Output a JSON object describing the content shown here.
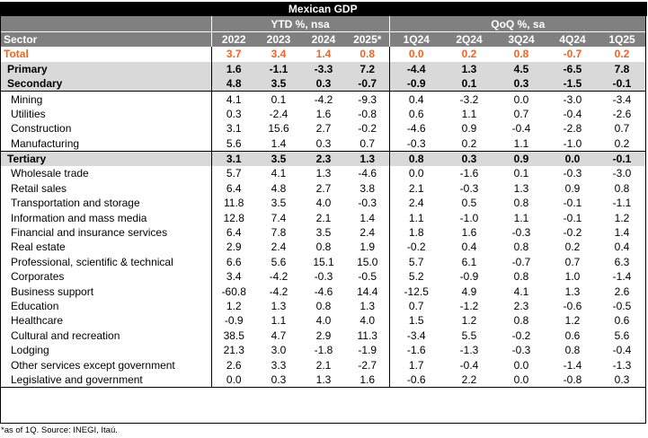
{
  "title": "Mexican GDP",
  "groups": {
    "ytd": "YTD %, nsa",
    "qoq": "QoQ %, sa"
  },
  "sector_header": "Sector",
  "columns": [
    "2022",
    "2023",
    "2024",
    "2025*",
    "1Q24",
    "2Q24",
    "3Q24",
    "4Q24",
    "1Q25"
  ],
  "colors": {
    "total": "#f26522",
    "header_bg": "#808080",
    "title_bg": "#000000",
    "aggregate_bg": "#d9d9d9"
  },
  "rows": [
    {
      "label": "Total",
      "kind": "total",
      "values": [
        "3.7",
        "3.4",
        "1.4",
        "0.8",
        "0.0",
        "0.2",
        "0.8",
        "-0.7",
        "0.2"
      ]
    },
    {
      "label": "Primary",
      "kind": "agg",
      "values": [
        "1.6",
        "-1.1",
        "-3.3",
        "7.2",
        "-4.4",
        "1.3",
        "4.5",
        "-6.5",
        "7.8"
      ]
    },
    {
      "label": "Secondary",
      "kind": "agg",
      "values": [
        "4.8",
        "3.5",
        "0.3",
        "-0.7",
        "-0.9",
        "0.1",
        "0.3",
        "-1.5",
        "-0.1"
      ]
    },
    {
      "label": "Mining",
      "kind": "sub",
      "values": [
        "4.1",
        "0.1",
        "-4.2",
        "-9.3",
        "0.4",
        "-3.2",
        "0.0",
        "-3.0",
        "-3.4"
      ]
    },
    {
      "label": "Utilities",
      "kind": "sub",
      "values": [
        "0.3",
        "-2.4",
        "1.6",
        "-0.8",
        "0.6",
        "1.1",
        "0.7",
        "-0.4",
        "-2.6"
      ]
    },
    {
      "label": "Construction",
      "kind": "sub",
      "values": [
        "3.1",
        "15.6",
        "2.7",
        "-0.2",
        "-4.6",
        "0.9",
        "-0.4",
        "-2.8",
        "0.7"
      ]
    },
    {
      "label": "Manufacturing",
      "kind": "sub",
      "values": [
        "5.6",
        "1.4",
        "0.3",
        "0.7",
        "-0.3",
        "0.2",
        "1.1",
        "-1.0",
        "0.2"
      ]
    },
    {
      "label": "Tertiary",
      "kind": "agg",
      "values": [
        "3.1",
        "3.5",
        "2.3",
        "1.3",
        "0.8",
        "0.3",
        "0.9",
        "0.0",
        "-0.1"
      ]
    },
    {
      "label": "Wholesale trade",
      "kind": "sub",
      "values": [
        "5.7",
        "4.1",
        "1.3",
        "-4.6",
        "0.0",
        "-1.6",
        "0.1",
        "-0.3",
        "-3.0"
      ]
    },
    {
      "label": "Retail sales",
      "kind": "sub",
      "values": [
        "6.4",
        "4.8",
        "2.7",
        "3.8",
        "2.1",
        "-0.3",
        "1.3",
        "0.9",
        "0.8"
      ]
    },
    {
      "label": "Transportation and storage",
      "kind": "sub",
      "values": [
        "11.8",
        "3.5",
        "4.0",
        "-0.3",
        "2.4",
        "0.5",
        "0.8",
        "-0.1",
        "-1.1"
      ]
    },
    {
      "label": "Information and mass media",
      "kind": "sub",
      "values": [
        "12.8",
        "7.4",
        "2.1",
        "1.4",
        "1.1",
        "-1.0",
        "1.1",
        "-0.1",
        "1.2"
      ]
    },
    {
      "label": "Financial and insurance services",
      "kind": "sub",
      "values": [
        "6.4",
        "7.8",
        "3.5",
        "2.4",
        "1.8",
        "1.6",
        "-0.3",
        "-0.2",
        "1.4"
      ]
    },
    {
      "label": "Real estate",
      "kind": "sub",
      "values": [
        "2.9",
        "2.4",
        "0.8",
        "1.9",
        "-0.2",
        "0.4",
        "0.8",
        "0.2",
        "0.4"
      ]
    },
    {
      "label": "Professional, scientific & technical",
      "kind": "sub",
      "values": [
        "6.6",
        "5.6",
        "15.1",
        "15.0",
        "5.7",
        "6.1",
        "-0.7",
        "0.7",
        "6.3"
      ]
    },
    {
      "label": "Corporates",
      "kind": "sub",
      "values": [
        "3.4",
        "-4.2",
        "-0.3",
        "-0.5",
        "5.2",
        "-0.9",
        "0.8",
        "1.0",
        "-1.4"
      ]
    },
    {
      "label": "Business support",
      "kind": "sub",
      "values": [
        "-60.8",
        "-4.2",
        "-4.6",
        "14.4",
        "-12.5",
        "4.9",
        "4.1",
        "1.3",
        "2.6"
      ]
    },
    {
      "label": "Education",
      "kind": "sub",
      "values": [
        "1.2",
        "1.3",
        "0.8",
        "1.3",
        "0.7",
        "-1.2",
        "2.3",
        "-0.6",
        "-0.5"
      ]
    },
    {
      "label": "Healthcare",
      "kind": "sub",
      "values": [
        "-0.9",
        "1.1",
        "4.0",
        "4.0",
        "1.5",
        "1.2",
        "0.8",
        "1.2",
        "0.6"
      ]
    },
    {
      "label": "Cultural and recreation",
      "kind": "sub",
      "values": [
        "38.5",
        "4.7",
        "2.9",
        "11.3",
        "-3.4",
        "5.5",
        "-0.2",
        "0.6",
        "5.6"
      ]
    },
    {
      "label": "Lodging",
      "kind": "sub",
      "values": [
        "21.3",
        "3.0",
        "-1.8",
        "-1.9",
        "-1.6",
        "-1.3",
        "-0.3",
        "0.8",
        "-0.4"
      ]
    },
    {
      "label": "Other services except government",
      "kind": "sub",
      "values": [
        "2.6",
        "3.3",
        "2.1",
        "-2.7",
        "1.7",
        "-0.4",
        "0.0",
        "-1.4",
        "-1.3"
      ]
    },
    {
      "label": "Legislative and government",
      "kind": "sub",
      "values": [
        "0.0",
        "0.3",
        "1.3",
        "1.6",
        "-0.6",
        "2.2",
        "0.0",
        "-0.8",
        "0.3"
      ]
    }
  ],
  "footnote": "*as of 1Q. Source: INEGI, Itaú."
}
